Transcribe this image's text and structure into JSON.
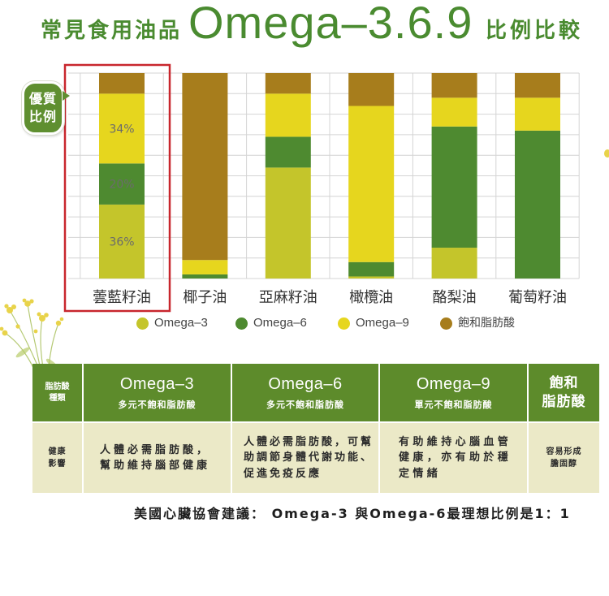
{
  "chart_data": {
    "type": "bar",
    "stacked": true,
    "title": {
      "prefix": "常見食用油品",
      "main": "Omega–3.6.9",
      "suffix": "比例比較"
    },
    "categories": [
      "蕓藍籽油",
      "椰子油",
      "亞麻籽油",
      "橄欖油",
      "酪梨油",
      "葡萄籽油"
    ],
    "series": [
      {
        "name": "Omega–3",
        "color": "#c4c52b",
        "values": [
          36,
          0,
          54,
          1,
          15,
          0
        ]
      },
      {
        "name": "Omega–6",
        "color": "#4e8a30",
        "values": [
          20,
          2,
          15,
          7,
          59,
          72
        ]
      },
      {
        "name": "Omega–9",
        "color": "#e6d61e",
        "values": [
          34,
          7,
          21,
          76,
          14,
          16
        ]
      },
      {
        "name": "飽和脂肪酸",
        "color": "#a77d1c",
        "values": [
          10,
          91,
          10,
          16,
          12,
          12
        ]
      }
    ],
    "data_labels": [
      {
        "category_index": 0,
        "series_index": 2,
        "text": "34%"
      },
      {
        "category_index": 0,
        "series_index": 1,
        "text": "20%"
      },
      {
        "category_index": 0,
        "series_index": 0,
        "text": "36%"
      }
    ],
    "highlight_index": 0,
    "ylim": [
      0,
      100
    ],
    "grid": true,
    "legend": "bottom"
  },
  "badge": {
    "line1": "優質",
    "line2": "比例"
  },
  "table": {
    "header": {
      "row_label": [
        "脂肪酸",
        "種類"
      ],
      "columns": [
        {
          "title": "Omega–3",
          "subtitle": "多元不飽和脂肪酸"
        },
        {
          "title": "Omega–6",
          "subtitle": "多元不飽和脂肪酸"
        },
        {
          "title": "Omega–9",
          "subtitle": "單元不飽和脂肪酸"
        }
      ],
      "last": [
        "飽和",
        "脂肪酸"
      ]
    },
    "row": {
      "row_label": [
        "健康",
        "影響"
      ],
      "cells": [
        [
          "人體必需脂肪酸，",
          "幫助維持腦部健康"
        ],
        [
          "人體必需脂肪酸，可幫",
          "助調節身體代謝功能、",
          "促進免疫反應"
        ],
        [
          "有助維持心腦血管",
          "健康，亦有助於穩",
          "定情緒"
        ]
      ],
      "last": [
        "容易形成",
        "膽固醇"
      ]
    }
  },
  "footnote": "美國心臟協會建議： Omega-3 與Omega-6最理想比例是1：1",
  "colors": {
    "title": "#4a8b30",
    "badge": "#5f8f30",
    "highlight_box": "#c8262d",
    "table_header": "#5d8b2b",
    "table_body": "#ebe9c7",
    "grid": "#d4d4d4",
    "data_label": "#6b6b6b"
  }
}
